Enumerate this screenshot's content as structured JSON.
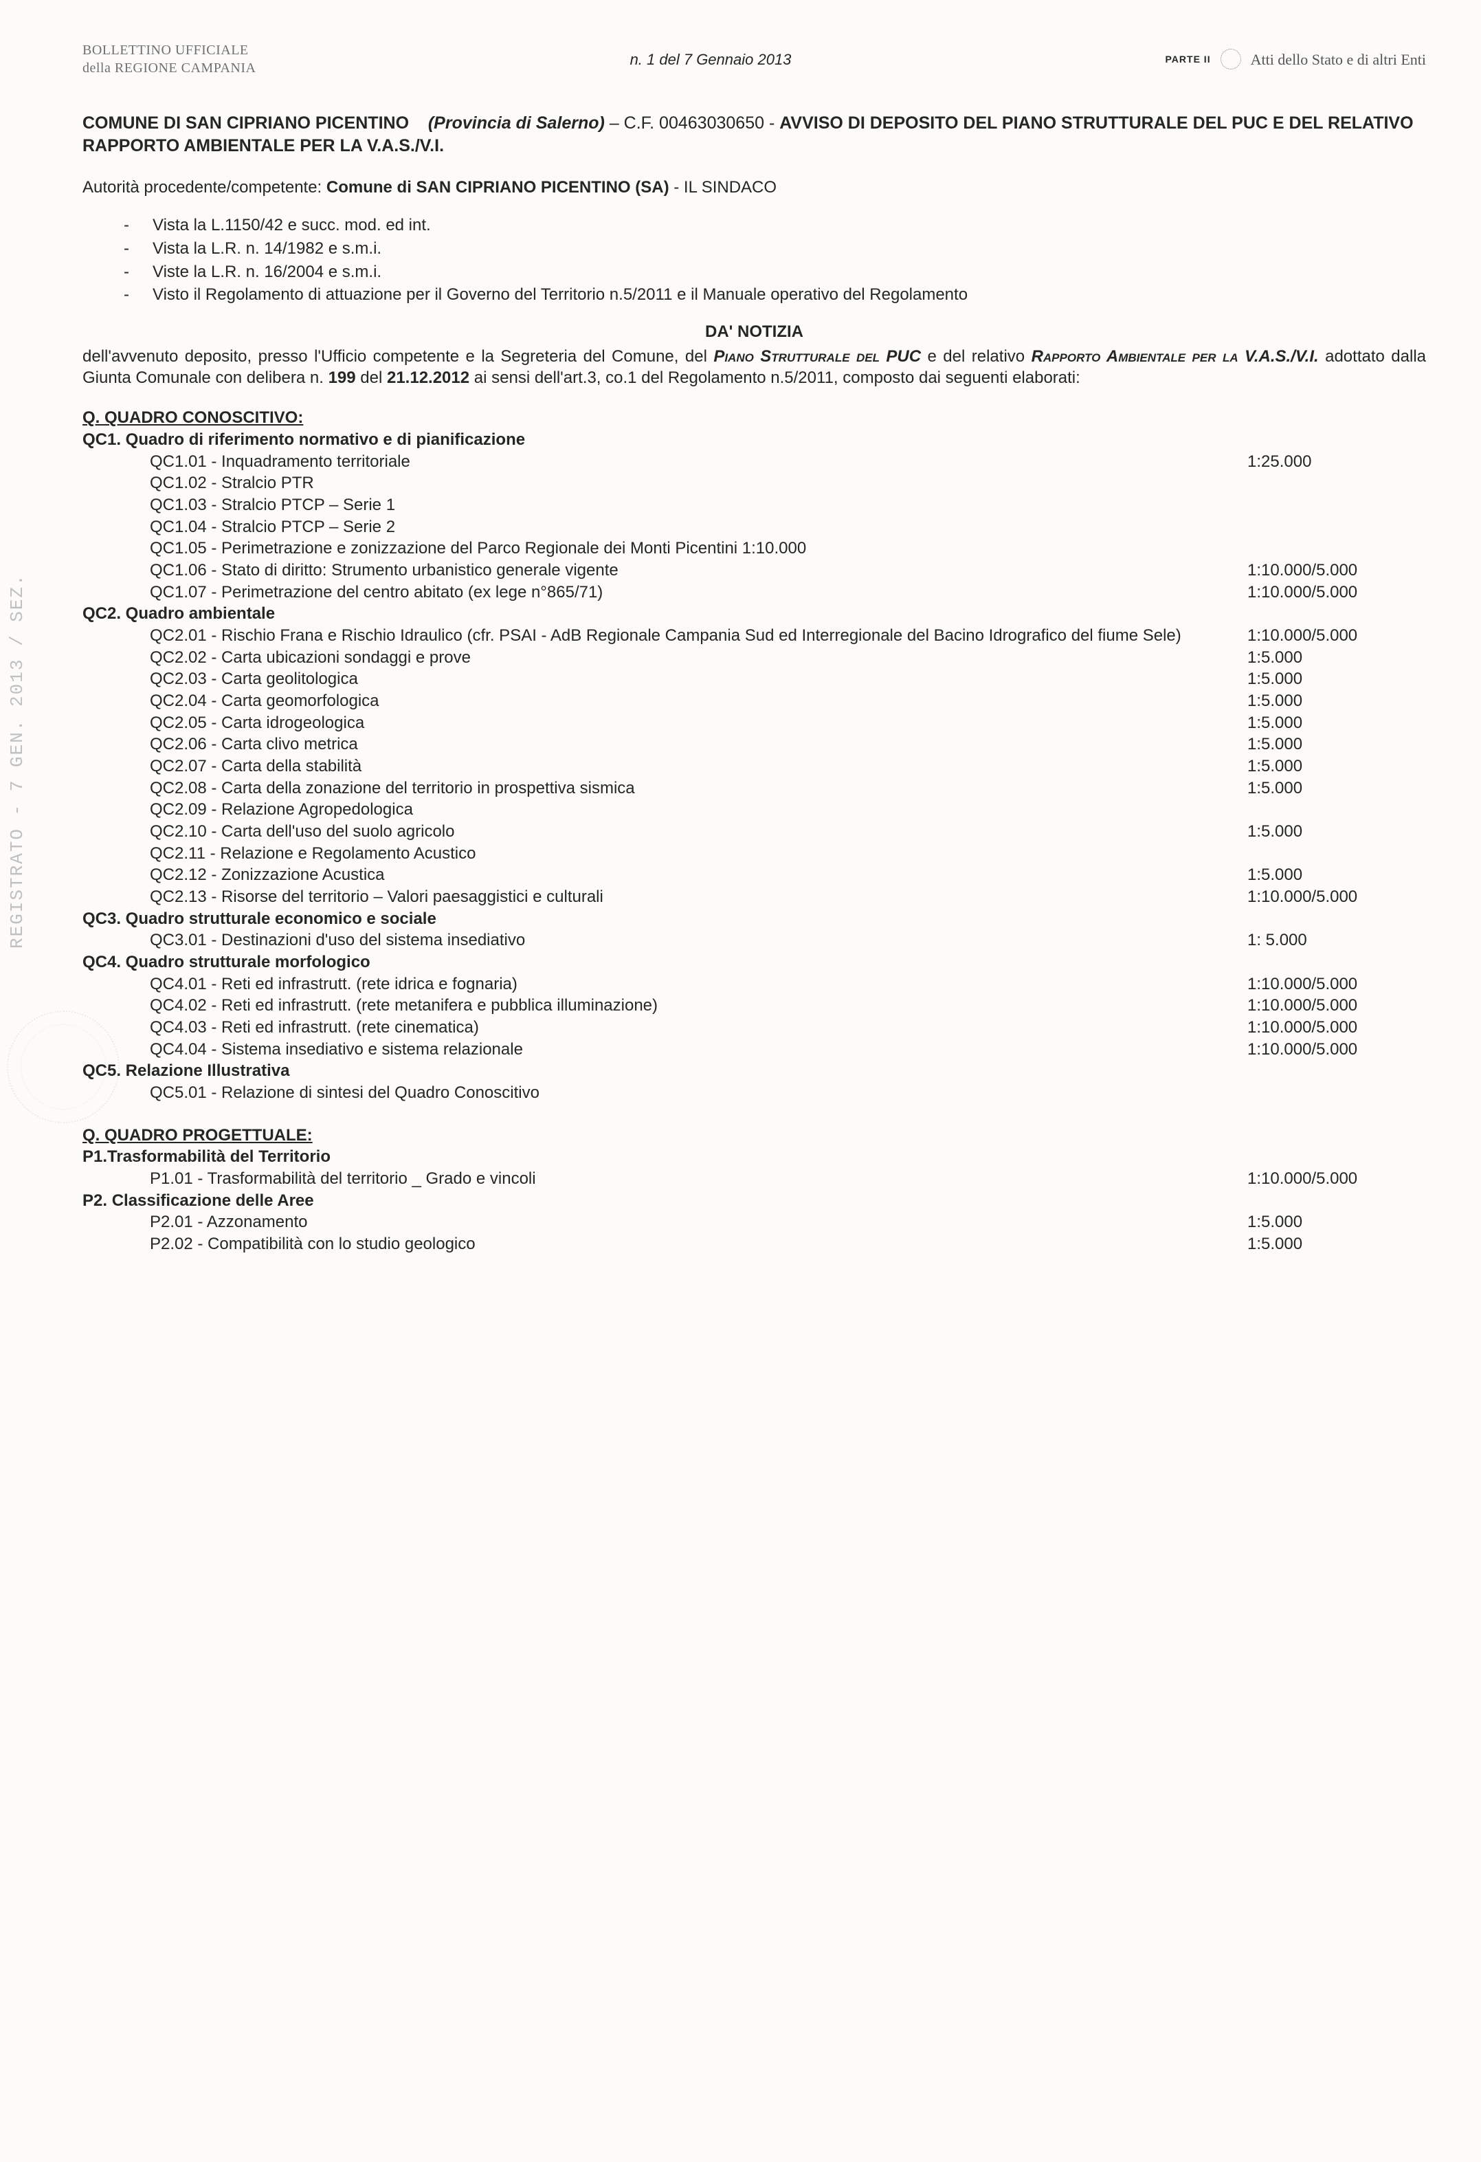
{
  "header": {
    "bulletin_line1": "BOLLETTINO UFFICIALE",
    "bulletin_line2": "della REGIONE CAMPANIA",
    "issue": "n. 1 del  7 Gennaio 2013",
    "parte_label": "PARTE II",
    "right_text": "Atti dello Stato e di altri Enti"
  },
  "title": {
    "prefix_bold": "COMUNE DI SAN CIPRIANO PICENTINO",
    "province_italic": "(Provincia di Salerno)",
    "cf": " – C.F. 00463030650 - ",
    "rest_bold": "AVVISO DI DEPOSITO DEL  PIANO STRUTTURALE DEL PUC E DEL RELATIVO RAPPORTO AMBIENTALE PER LA V.A.S./V.I."
  },
  "authority": {
    "label": "Autorità procedente/competente: ",
    "bold": "Comune di SAN CIPRIANO PICENTINO (SA)",
    "suffix": " - IL SINDACO"
  },
  "bullets": [
    "Vista la L.1150/42 e succ. mod. ed int.",
    "Vista la L.R. n. 14/1982 e s.m.i.",
    "Viste la L.R. n. 16/2004 e s.m.i.",
    "Visto il Regolamento di attuazione per il Governo del Territorio n.5/2011 e il Manuale operativo del Regolamento"
  ],
  "notice_head": "DA'  NOTIZIA",
  "notice": {
    "p1a": "dell'avvenuto deposito, presso l'Ufficio competente e la Segreteria del Comune, del ",
    "p1_sc1": "Piano Strutturale del PUC",
    "p1b": " e del relativo ",
    "p1_sc2": "Rapporto Ambientale per la V.A.S./V.I.",
    "p1c": "  adottato dalla Giunta Comunale con delibera n. ",
    "p1_bold1": "199",
    "p1d": " del ",
    "p1_bold2": "21.12.2012",
    "p1e": " ai sensi dell'art.3, co.1 del Regolamento n.5/2011, composto dai seguenti elaborati:"
  },
  "sections": [
    {
      "head": "Q. QUADRO CONOSCITIVO:",
      "groups": [
        {
          "head": "QC1. Quadro di riferimento normativo e di pianificazione",
          "items": [
            {
              "label": "QC1.01 - Inquadramento territoriale",
              "scale": "1:25.000"
            },
            {
              "label": "QC1.02 - Stralcio PTR",
              "scale": ""
            },
            {
              "label": "QC1.03 - Stralcio PTCP – Serie 1",
              "scale": ""
            },
            {
              "label": "QC1.04 - Stralcio PTCP – Serie 2",
              "scale": ""
            },
            {
              "label": "QC1.05 - Perimetrazione e zonizzazione del Parco Regionale dei Monti Picentini 1:10.000",
              "scale": ""
            },
            {
              "label": "QC1.06 - Stato di diritto: Strumento urbanistico generale vigente",
              "scale": "1:10.000/5.000"
            },
            {
              "label": "QC1.07 - Perimetrazione del centro abitato (ex lege n°865/71)",
              "scale": "1:10.000/5.000"
            }
          ]
        },
        {
          "head": "QC2. Quadro ambientale",
          "items": [
            {
              "label": "QC2.01 - Rischio Frana e Rischio Idraulico (cfr. PSAI - AdB Regionale Campania Sud ed Interregionale del Bacino Idrografico del fiume Sele)",
              "scale": "1:10.000/5.000"
            },
            {
              "label": "QC2.02 - Carta ubicazioni sondaggi e prove",
              "scale": "1:5.000"
            },
            {
              "label": "QC2.03 - Carta geolitologica",
              "scale": "1:5.000"
            },
            {
              "label": "QC2.04 - Carta geomorfologica",
              "scale": "1:5.000"
            },
            {
              "label": "QC2.05 - Carta idrogeologica",
              "scale": "1:5.000"
            },
            {
              "label": "QC2.06 - Carta clivo metrica",
              "scale": "1:5.000"
            },
            {
              "label": "QC2.07 - Carta della stabilità",
              "scale": "1:5.000"
            },
            {
              "label": "QC2.08 - Carta della zonazione del territorio in prospettiva sismica",
              "scale": "1:5.000"
            },
            {
              "label": "QC2.09 - Relazione Agropedologica",
              "scale": ""
            },
            {
              "label": "QC2.10 - Carta dell'uso del suolo agricolo",
              "scale": "1:5.000"
            },
            {
              "label": "QC2.11 - Relazione e Regolamento Acustico",
              "scale": ""
            },
            {
              "label": "QC2.12 - Zonizzazione Acustica",
              "scale": "1:5.000"
            },
            {
              "label": "QC2.13 - Risorse del territorio – Valori paesaggistici e culturali",
              "scale": "1:10.000/5.000"
            }
          ]
        },
        {
          "head": "QC3. Quadro strutturale economico e sociale",
          "items": [
            {
              "label": "QC3.01 - Destinazioni d'uso del sistema insediativo",
              "scale": "1: 5.000"
            }
          ]
        },
        {
          "head": "QC4. Quadro strutturale morfologico",
          "items": [
            {
              "label": "QC4.01 - Reti ed infrastrutt. (rete idrica e fognaria)",
              "scale": "1:10.000/5.000"
            },
            {
              "label": "QC4.02 - Reti ed infrastrutt. (rete metanifera e pubblica illuminazione)",
              "scale": "1:10.000/5.000"
            },
            {
              "label": "QC4.03 - Reti ed infrastrutt. (rete cinematica)",
              "scale": "1:10.000/5.000"
            },
            {
              "label": "QC4.04 - Sistema insediativo e sistema relazionale",
              "scale": "1:10.000/5.000"
            }
          ]
        },
        {
          "head": "QC5. Relazione Illustrativa",
          "items": [
            {
              "label": "QC5.01 - Relazione di sintesi del Quadro Conoscitivo",
              "scale": ""
            }
          ]
        }
      ]
    },
    {
      "head": "Q. QUADRO PROGETTUALE:",
      "groups": [
        {
          "head": "P1.Trasformabilità del Territorio",
          "items": [
            {
              "label": "P1.01 - Trasformabilità del territorio _ Grado e vincoli",
              "scale": "1:10.000/5.000"
            }
          ]
        },
        {
          "head": "P2. Classificazione delle Aree",
          "items": [
            {
              "label": "P2.01 - Azzonamento",
              "scale": "1:5.000"
            },
            {
              "label": "P2.02 - Compatibilità con lo studio geologico",
              "scale": "1:5.000"
            }
          ]
        }
      ]
    }
  ],
  "side_stamp": "REGISTRATO  - 7 GEN. 2013 / SEZ."
}
